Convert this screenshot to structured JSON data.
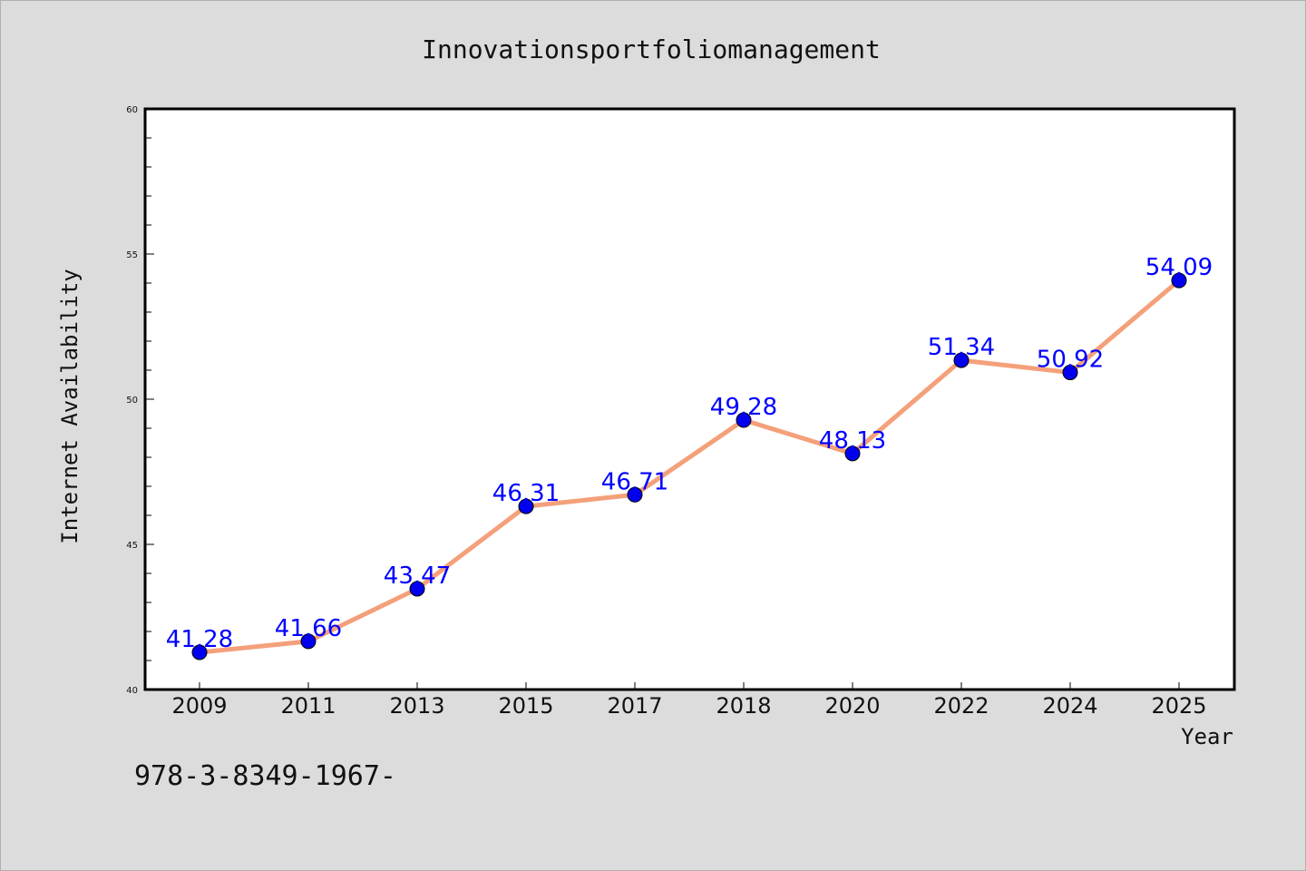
{
  "chart_data": {
    "type": "line",
    "title": "Innovationsportfoliomanagement",
    "xlabel": "Year",
    "ylabel": "Internet Availability",
    "categories": [
      "2009",
      "2011",
      "2013",
      "2015",
      "2017",
      "2018",
      "2020",
      "2022",
      "2024",
      "2025"
    ],
    "series": [
      {
        "values": [
          41.28,
          41.66,
          43.47,
          46.31,
          46.71,
          49.28,
          48.13,
          51.34,
          50.92,
          54.09
        ],
        "data_labels": [
          "41.28",
          "41.66",
          "43.47",
          "46.31",
          "46.71",
          "49.28",
          "48.13",
          "51.34",
          "50.92",
          "54.09"
        ],
        "line_color": "#f4a07a",
        "marker_color": "#0000ee"
      }
    ],
    "ylim": [
      40,
      60
    ],
    "yticks": [
      40,
      45,
      50,
      55,
      60
    ],
    "ytick_labels": [
      "40",
      "45",
      "50",
      "55",
      "60"
    ],
    "grid": false,
    "legend": "none",
    "data_label_color": "#0000ff"
  },
  "footer": {
    "text": "978-3-8349-1967-"
  }
}
